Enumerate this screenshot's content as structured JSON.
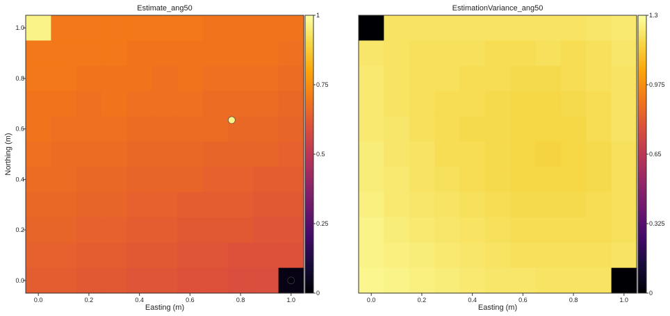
{
  "chart_data": [
    {
      "type": "heatmap",
      "title": "Estimate_ang50",
      "xlabel": "Easting (m)",
      "ylabel": "Northing (m)",
      "xlim": [
        -0.05,
        1.05
      ],
      "ylim": [
        -0.05,
        1.05
      ],
      "x_ticks": [
        "0.0",
        "0.2",
        "0.4",
        "0.6",
        "0.8",
        "1.0"
      ],
      "y_ticks": [
        "0.0",
        "0.2",
        "0.4",
        "0.6",
        "0.8",
        "1.0"
      ],
      "colormap": "inferno",
      "colorbar_range": [
        0,
        1
      ],
      "colorbar_ticks": [
        "0",
        "0.25",
        "0.5",
        "0.75",
        "1"
      ],
      "grid_size": 11,
      "x_centers": [
        0.0,
        0.1,
        0.2,
        0.3,
        0.4,
        0.5,
        0.6,
        0.7,
        0.8,
        0.9,
        1.0
      ],
      "y_centers": [
        1.0,
        0.9,
        0.8,
        0.7,
        0.6,
        0.5,
        0.4,
        0.3,
        0.2,
        0.1,
        0.0
      ],
      "values": [
        [
          0.97,
          0.7,
          0.7,
          0.7,
          0.7,
          0.7,
          0.7,
          0.69,
          0.69,
          0.69,
          0.69
        ],
        [
          0.7,
          0.7,
          0.7,
          0.7,
          0.69,
          0.69,
          0.69,
          0.69,
          0.69,
          0.69,
          0.68
        ],
        [
          0.7,
          0.7,
          0.69,
          0.69,
          0.69,
          0.68,
          0.69,
          0.68,
          0.68,
          0.68,
          0.67
        ],
        [
          0.69,
          0.69,
          0.68,
          0.69,
          0.68,
          0.68,
          0.68,
          0.67,
          0.67,
          0.67,
          0.66
        ],
        [
          0.69,
          0.68,
          0.68,
          0.68,
          0.67,
          0.67,
          0.67,
          0.67,
          0.66,
          0.66,
          0.65
        ],
        [
          0.68,
          0.67,
          0.67,
          0.67,
          0.66,
          0.66,
          0.66,
          0.65,
          0.65,
          0.65,
          0.64
        ],
        [
          0.67,
          0.67,
          0.66,
          0.66,
          0.65,
          0.65,
          0.65,
          0.64,
          0.64,
          0.63,
          0.63
        ],
        [
          0.66,
          0.66,
          0.65,
          0.65,
          0.64,
          0.64,
          0.63,
          0.63,
          0.63,
          0.62,
          0.62
        ],
        [
          0.65,
          0.65,
          0.64,
          0.64,
          0.63,
          0.63,
          0.62,
          0.62,
          0.62,
          0.61,
          0.61
        ],
        [
          0.64,
          0.64,
          0.63,
          0.63,
          0.62,
          0.62,
          0.61,
          0.61,
          0.6,
          0.6,
          0.6
        ],
        [
          0.63,
          0.63,
          0.62,
          0.62,
          0.61,
          0.61,
          0.6,
          0.6,
          0.59,
          0.59,
          0.03
        ]
      ],
      "points": [
        {
          "x": 0.765,
          "y": 0.635,
          "value": 0.97
        },
        {
          "x": 1.0,
          "y": 0.0,
          "value": 0.02
        }
      ]
    },
    {
      "type": "heatmap",
      "title": "EstimationVariance_ang50",
      "xlabel": "Easting (m)",
      "ylabel": "",
      "xlim": [
        -0.05,
        1.05
      ],
      "ylim": [
        -0.05,
        1.05
      ],
      "x_ticks": [
        "0.0",
        "0.2",
        "0.4",
        "0.6",
        "0.8",
        "1.0"
      ],
      "colormap": "inferno",
      "colorbar_range": [
        0,
        1.3
      ],
      "colorbar_ticks": [
        "0",
        "0.325",
        "0.65",
        "0.975",
        "1.3"
      ],
      "grid_size": 11,
      "x_centers": [
        0.0,
        0.1,
        0.2,
        0.3,
        0.4,
        0.5,
        0.6,
        0.7,
        0.8,
        0.9,
        1.0
      ],
      "y_centers": [
        1.0,
        0.9,
        0.8,
        0.7,
        0.6,
        0.5,
        0.4,
        0.3,
        0.2,
        0.1,
        0.0
      ],
      "values": [
        [
          0.0,
          1.21,
          1.21,
          1.21,
          1.21,
          1.21,
          1.21,
          1.21,
          1.21,
          1.22,
          1.23
        ],
        [
          1.22,
          1.21,
          1.2,
          1.2,
          1.2,
          1.19,
          1.19,
          1.2,
          1.19,
          1.2,
          1.22
        ],
        [
          1.23,
          1.21,
          1.2,
          1.2,
          1.19,
          1.19,
          1.18,
          1.18,
          1.19,
          1.2,
          1.21
        ],
        [
          1.23,
          1.21,
          1.2,
          1.19,
          1.19,
          1.18,
          1.17,
          1.17,
          1.18,
          1.19,
          1.21
        ],
        [
          1.23,
          1.22,
          1.2,
          1.19,
          1.18,
          1.18,
          1.17,
          1.17,
          1.17,
          1.19,
          1.21
        ],
        [
          1.24,
          1.22,
          1.21,
          1.19,
          1.19,
          1.18,
          1.17,
          1.16,
          1.17,
          1.18,
          1.2
        ],
        [
          1.24,
          1.23,
          1.21,
          1.2,
          1.19,
          1.18,
          1.17,
          1.17,
          1.17,
          1.18,
          1.2
        ],
        [
          1.25,
          1.23,
          1.22,
          1.21,
          1.2,
          1.19,
          1.18,
          1.18,
          1.18,
          1.19,
          1.2
        ],
        [
          1.26,
          1.24,
          1.23,
          1.22,
          1.21,
          1.2,
          1.19,
          1.19,
          1.19,
          1.19,
          1.2
        ],
        [
          1.26,
          1.25,
          1.24,
          1.23,
          1.22,
          1.21,
          1.2,
          1.2,
          1.2,
          1.2,
          1.21
        ],
        [
          1.27,
          1.26,
          1.25,
          1.24,
          1.23,
          1.22,
          1.22,
          1.21,
          1.21,
          1.21,
          0.0
        ]
      ]
    }
  ]
}
